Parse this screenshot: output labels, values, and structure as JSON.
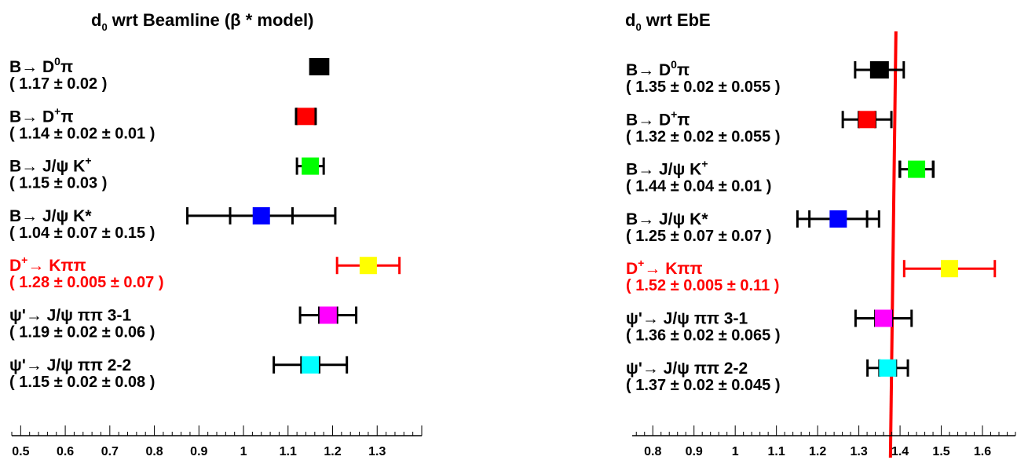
{
  "chart_data": [
    {
      "type": "scatter",
      "title": {
        "pre": "d",
        "sub": "0",
        "post": " wrt Beamline (β * model)"
      },
      "xlim": [
        0.48,
        1.4
      ],
      "ticks": [
        "0.5",
        "0.6",
        "0.7",
        "0.8",
        "0.9",
        "1",
        "1.1",
        "1.2",
        "1.3"
      ],
      "tick_values": [
        0.5,
        0.6,
        0.7,
        0.8,
        0.9,
        1.0,
        1.1,
        1.2,
        1.3
      ],
      "reference_line": null,
      "entries": [
        {
          "label": {
            "pre": "B→ D",
            "sup": "0",
            "post": "π"
          },
          "value_text": "( 1.17 ± 0.02 )",
          "value": 1.17,
          "stat": 0.02,
          "total": 0.02,
          "color": "#000000",
          "label_color": "#000000"
        },
        {
          "label": {
            "pre": "B→ D",
            "sup": "+",
            "post": "π"
          },
          "value_text": "( 1.14 ± 0.02 ± 0.01 )",
          "value": 1.14,
          "stat": 0.02,
          "total": 0.022,
          "color": "#ff0000",
          "label_color": "#000000"
        },
        {
          "label": {
            "pre": "B→ J/ψ K",
            "sup": "+",
            "post": ""
          },
          "value_text": "( 1.15 ± 0.03 )",
          "value": 1.15,
          "stat": 0.03,
          "total": 0.03,
          "color": "#00ff00",
          "label_color": "#000000"
        },
        {
          "label": {
            "pre": "B→ J/ψ K*",
            "sup": "",
            "post": ""
          },
          "value_text": "( 1.04 ± 0.07 ± 0.15 )",
          "value": 1.04,
          "stat": 0.07,
          "total": 0.166,
          "color": "#0000ff",
          "label_color": "#000000"
        },
        {
          "label": {
            "pre": "D",
            "sup": "+",
            "post": "→ Kππ"
          },
          "value_text": "( 1.28 ± 0.005 ± 0.07 )",
          "value": 1.28,
          "stat": 0.005,
          "total": 0.07,
          "color": "#ffff00",
          "label_color": "#ff0000"
        },
        {
          "label": {
            "pre": "ψ'→ J/ψ ππ 3-1",
            "sup": "",
            "post": ""
          },
          "value_text": "( 1.19 ± 0.02 ± 0.06 )",
          "value": 1.19,
          "stat": 0.02,
          "total": 0.063,
          "color": "#ff00ff",
          "label_color": "#000000"
        },
        {
          "label": {
            "pre": "ψ'→ J/ψ ππ 2-2",
            "sup": "",
            "post": ""
          },
          "value_text": "( 1.15 ± 0.02 ± 0.08 )",
          "value": 1.15,
          "stat": 0.02,
          "total": 0.082,
          "color": "#00ffff",
          "label_color": "#000000"
        }
      ]
    },
    {
      "type": "scatter",
      "title": {
        "pre": "d",
        "sub": "0",
        "post": " wrt EbE"
      },
      "xlim": [
        0.75,
        1.68
      ],
      "ticks": [
        "0.8",
        "0.9",
        "1",
        "1.1",
        "1.2",
        "1.3",
        "1.4",
        "1.5",
        "1.6"
      ],
      "tick_values": [
        0.8,
        0.9,
        1.0,
        1.1,
        1.2,
        1.3,
        1.4,
        1.5,
        1.6
      ],
      "reference_line": 1.39,
      "reference_line_color": "#ff0000",
      "entries": [
        {
          "label": {
            "pre": "B→ D",
            "sup": "0",
            "post": "π"
          },
          "value_text": "( 1.35 ± 0.02 ± 0.055 )",
          "value": 1.35,
          "stat": 0.02,
          "total": 0.059,
          "color": "#000000",
          "label_color": "#000000"
        },
        {
          "label": {
            "pre": "B→ D",
            "sup": "+",
            "post": "π"
          },
          "value_text": "( 1.32 ± 0.02 ± 0.055 )",
          "value": 1.32,
          "stat": 0.02,
          "total": 0.059,
          "color": "#ff0000",
          "label_color": "#000000"
        },
        {
          "label": {
            "pre": "B→ J/ψ K",
            "sup": "+",
            "post": ""
          },
          "value_text": "( 1.44 ± 0.04 ± 0.01 )",
          "value": 1.44,
          "stat": 0.04,
          "total": 0.041,
          "color": "#00ff00",
          "label_color": "#000000"
        },
        {
          "label": {
            "pre": "B→ J/ψ K*",
            "sup": "",
            "post": ""
          },
          "value_text": "( 1.25 ± 0.07 ± 0.07 )",
          "value": 1.25,
          "stat": 0.07,
          "total": 0.099,
          "color": "#0000ff",
          "label_color": "#000000"
        },
        {
          "label": {
            "pre": "D",
            "sup": "+",
            "post": "→ Kππ"
          },
          "value_text": "( 1.52 ± 0.005 ± 0.11 )",
          "value": 1.52,
          "stat": 0.005,
          "total": 0.11,
          "color": "#ffff00",
          "label_color": "#ff0000"
        },
        {
          "label": {
            "pre": "ψ'→ J/ψ ππ 3-1",
            "sup": "",
            "post": ""
          },
          "value_text": "( 1.36 ± 0.02 ± 0.065 )",
          "value": 1.36,
          "stat": 0.02,
          "total": 0.068,
          "color": "#ff00ff",
          "label_color": "#000000"
        },
        {
          "label": {
            "pre": "ψ'→ J/ψ ππ 2-2",
            "sup": "",
            "post": ""
          },
          "value_text": "( 1.37 ± 0.02 ± 0.045 )",
          "value": 1.37,
          "stat": 0.02,
          "total": 0.049,
          "color": "#00ffff",
          "label_color": "#000000"
        }
      ]
    }
  ]
}
